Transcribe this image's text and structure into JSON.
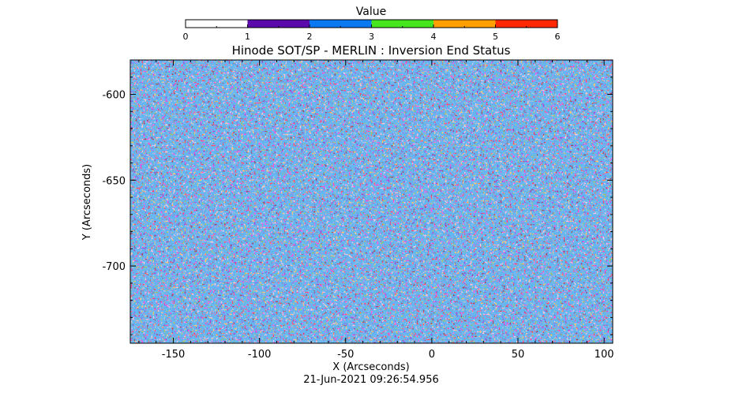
{
  "chart_data": {
    "type": "heatmap",
    "title": "Hinode SOT/SP - MERLIN : Inversion End Status",
    "xlabel": "X (Arcseconds)",
    "ylabel": "Y (Arcseconds)",
    "xlim": [
      -175,
      105
    ],
    "ylim": [
      -745,
      -580
    ],
    "x_ticks": [
      -150,
      -100,
      -50,
      0,
      50,
      100
    ],
    "x_tick_labels": [
      "-150",
      "-100",
      "-50",
      "0",
      "50",
      "100"
    ],
    "y_ticks": [
      -600,
      -650,
      -700
    ],
    "y_tick_labels": [
      "-600",
      "-650",
      "-700"
    ],
    "colorbar": {
      "label": "Value",
      "range": [
        0,
        6
      ],
      "ticks": [
        0,
        1,
        2,
        3,
        4,
        5,
        6
      ],
      "tick_labels": [
        "0",
        "1",
        "2",
        "3",
        "4",
        "5",
        "6"
      ],
      "levels": [
        {
          "from": 0,
          "to": 1,
          "color": "#ffffff"
        },
        {
          "from": 1,
          "to": 2,
          "color": "#5a0aaa"
        },
        {
          "from": 2,
          "to": 3,
          "color": "#0a78f0"
        },
        {
          "from": 3,
          "to": 4,
          "color": "#46e61e"
        },
        {
          "from": 4,
          "to": 5,
          "color": "#ffa000"
        },
        {
          "from": 5,
          "to": 6,
          "color": "#ff2800"
        }
      ]
    },
    "pixel_values_present": [
      1,
      2,
      4
    ],
    "dominant_colors": {
      "1": "#5a14b4",
      "2": "#1e78e6",
      "4": "#ff8c28"
    },
    "pattern": "dense noisy mixture of values 1 and 4 with sparse value 2"
  },
  "timestamp": "21-Jun-2021 09:26:54.956"
}
